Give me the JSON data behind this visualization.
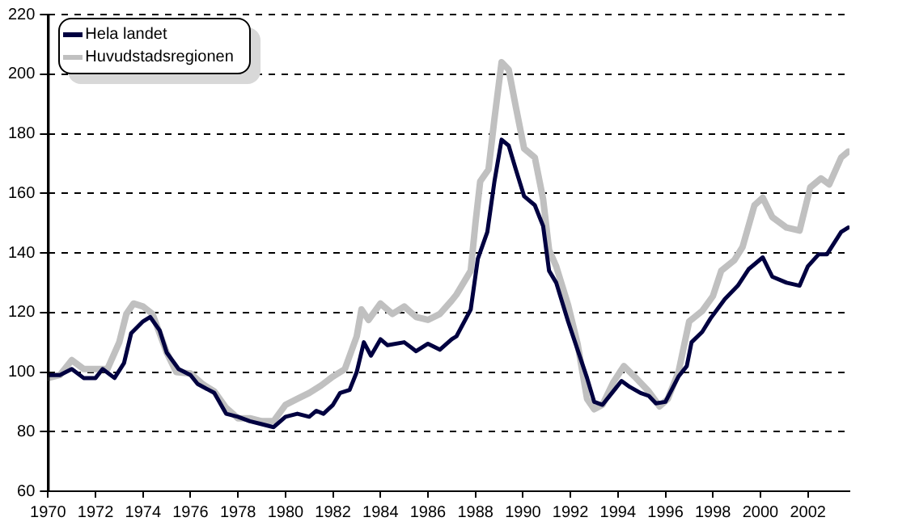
{
  "chart_data": {
    "type": "line",
    "legend": "top left",
    "grid": "y",
    "marker": "none",
    "line_style": "solid",
    "xlim": [
      1970,
      2003.75
    ],
    "xticks": [
      1970,
      1972,
      1974,
      1976,
      1978,
      1980,
      1982,
      1984,
      1986,
      1988,
      1990,
      1992,
      1994,
      1996,
      1998,
      2000,
      2002
    ],
    "ylim": [
      60,
      220
    ],
    "yticks": [
      60,
      80,
      100,
      120,
      140,
      160,
      180,
      200,
      220
    ],
    "series": [
      {
        "name": "Hela landet",
        "color": "#000040",
        "x": [
          1970,
          1970.5,
          1971,
          1971.5,
          1972,
          1972.3,
          1972.8,
          1973.2,
          1973.5,
          1974,
          1974.3,
          1974.7,
          1975,
          1975.5,
          1976,
          1976.3,
          1977,
          1977.5,
          1978,
          1978.5,
          1979,
          1979.5,
          1980,
          1980.5,
          1981,
          1981.3,
          1981.6,
          1982,
          1982.3,
          1982.7,
          1983,
          1983.3,
          1983.6,
          1984,
          1984.3,
          1985,
          1985.5,
          1986,
          1986.5,
          1987,
          1987.2,
          1987.8,
          1988.1,
          1988.5,
          1988.8,
          1989.1,
          1989.4,
          1989.7,
          1990.05,
          1990.5,
          1990.85,
          1991.1,
          1991.4,
          1991.9,
          1992.3,
          1992.7,
          1993,
          1993.35,
          1993.7,
          1994.15,
          1994.5,
          1994.95,
          1995.3,
          1995.6,
          1996,
          1996.55,
          1996.9,
          1997.1,
          1997.55,
          1997.9,
          1998.5,
          1999.05,
          1999.5,
          2000.1,
          2000.5,
          2001.1,
          2001.65,
          2002,
          2002.45,
          2002.8,
          2003.4,
          2003.7
        ],
        "values": [
          99,
          99,
          101,
          98,
          98,
          101,
          98,
          103,
          113,
          117,
          118.5,
          114,
          106.5,
          101,
          99,
          96,
          93,
          86,
          85,
          83.5,
          82.5,
          81.5,
          85,
          86,
          85,
          87,
          86,
          89,
          93,
          94,
          100,
          110,
          105.5,
          111,
          109,
          110,
          107,
          109.5,
          107.5,
          111,
          112,
          121,
          138,
          147,
          164,
          178,
          176,
          168,
          159,
          156,
          149,
          134,
          130,
          117,
          107.5,
          98,
          90,
          89,
          92.5,
          97,
          95,
          93,
          92,
          89.5,
          90,
          98.5,
          102,
          110,
          113.5,
          118,
          124.5,
          129,
          134.5,
          138.5,
          132,
          130,
          129,
          135.5,
          139.5,
          139.5,
          147,
          148.5
        ]
      },
      {
        "name": "Huvudstadsregionen",
        "color": "#c0c0c0",
        "x": [
          1970,
          1970.5,
          1971,
          1971.5,
          1972,
          1972.5,
          1973,
          1973.3,
          1973.6,
          1974,
          1974.4,
          1975,
          1975.4,
          1976,
          1976.5,
          1977,
          1977.5,
          1978,
          1978.5,
          1979,
          1979.5,
          1980,
          1980.5,
          1981,
          1981.5,
          1982,
          1982.5,
          1983,
          1983.2,
          1983.5,
          1984,
          1984.5,
          1985,
          1985.5,
          1986,
          1986.5,
          1987,
          1987.2,
          1987.8,
          1988,
          1988.2,
          1988.55,
          1988.8,
          1989.1,
          1989.4,
          1989.7,
          1990.05,
          1990.5,
          1990.85,
          1991.1,
          1991.4,
          1991.9,
          1992.3,
          1992.7,
          1993,
          1993.35,
          1993.8,
          1994.25,
          1994.7,
          1995.3,
          1995.75,
          1996.1,
          1996.55,
          1997,
          1997.55,
          1998,
          1998.35,
          1998.9,
          1999.25,
          1999.75,
          2000.1,
          2000.5,
          2001.1,
          2001.65,
          2002.1,
          2002.55,
          2002.9,
          2003.4,
          2003.7
        ],
        "values": [
          98,
          99,
          104,
          101,
          101,
          101,
          110,
          119.5,
          123,
          122,
          119.5,
          106.5,
          100,
          99.5,
          96,
          93.5,
          88,
          84.5,
          84.5,
          83.5,
          83.5,
          89,
          91,
          93,
          95.5,
          98.5,
          101,
          112,
          121,
          117.5,
          123,
          119.5,
          122,
          118.5,
          117.5,
          119.5,
          124,
          126,
          134,
          150,
          164,
          168,
          185,
          204,
          201.5,
          189,
          175,
          172,
          158,
          141,
          135.5,
          122.5,
          109.5,
          91,
          87.5,
          89,
          96.5,
          102,
          98.5,
          93.5,
          88.5,
          91,
          100,
          117,
          120.5,
          125.5,
          134,
          137.5,
          142,
          156,
          158.5,
          152,
          148.5,
          147.5,
          162,
          165,
          163,
          172,
          174
        ]
      }
    ]
  }
}
